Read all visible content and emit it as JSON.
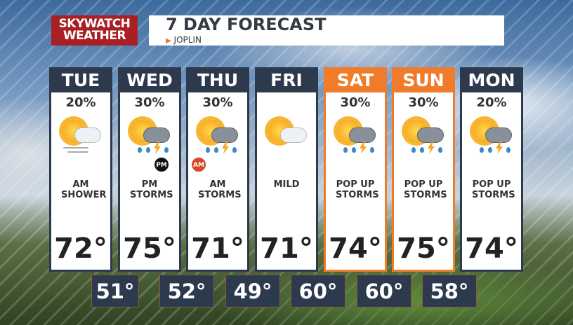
{
  "logo": "SKYWATCH WEATHER",
  "title": "7 DAY FORECAST",
  "location": "JOPLIN",
  "colors": {
    "header": "#2d3a4e",
    "weekend": "#f07b2b",
    "logo": "#a81f24"
  },
  "days": [
    {
      "day": "TUE",
      "precip": "20%",
      "icon": "partly-sunny-windy-icon",
      "desc": "AM SHOWER",
      "high": "72°",
      "weekend": false
    },
    {
      "day": "WED",
      "precip": "30%",
      "icon": "sun-storm-icon",
      "badge": "PM",
      "desc": "PM STORMS",
      "high": "75°",
      "weekend": false
    },
    {
      "day": "THU",
      "precip": "30%",
      "icon": "sun-storm-icon",
      "badge": "AM",
      "desc": "AM STORMS",
      "high": "71°",
      "weekend": false
    },
    {
      "day": "FRI",
      "precip": "",
      "icon": "partly-sunny-icon",
      "desc": "MILD",
      "high": "71°",
      "weekend": false
    },
    {
      "day": "SAT",
      "precip": "30%",
      "icon": "sun-storm-icon",
      "desc": "POP UP STORMS",
      "high": "74°",
      "weekend": true
    },
    {
      "day": "SUN",
      "precip": "30%",
      "icon": "sun-storm-icon",
      "desc": "POP UP STORMS",
      "high": "75°",
      "weekend": true
    },
    {
      "day": "MON",
      "precip": "20%",
      "icon": "sun-storm-icon",
      "desc": "POP UP STORMS",
      "high": "74°",
      "weekend": false
    }
  ],
  "lows": [
    "51°",
    "52°",
    "49°",
    "60°",
    "60°",
    "58°"
  ]
}
